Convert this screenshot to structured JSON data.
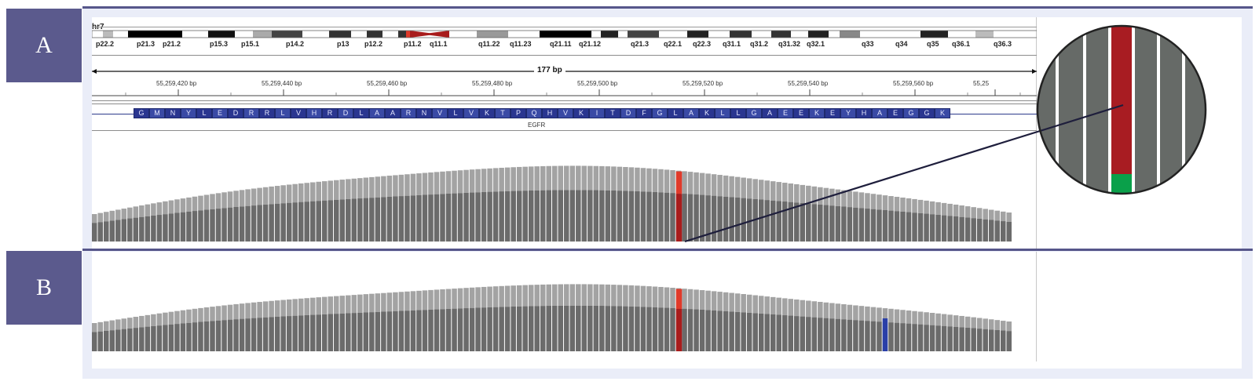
{
  "panels": {
    "a_label": "A",
    "b_label": "B"
  },
  "igv": {
    "chromosome": "hr7",
    "span": "177 bp",
    "gene": "EGFR",
    "bands": [
      "p22.2",
      "p21.3",
      "p21.2",
      "p15.3",
      "p15.1",
      "p14.2",
      "p13",
      "p12.2",
      "p11.2",
      "q11.1",
      "q11.22",
      "q11.23",
      "q21.11",
      "q21.12",
      "q21.3",
      "q22.1",
      "q22.3",
      "q31.1",
      "q31.2",
      "q31.32",
      "q32.1",
      "q33",
      "q34",
      "q35",
      "q36.1",
      "q36.3"
    ],
    "ruler_ticks": [
      "55,259,420 bp",
      "55,259,440 bp",
      "55,259,460 bp",
      "55,259,480 bp",
      "55,259,500 bp",
      "55,259,520 bp",
      "55,259,540 bp",
      "55,259,560 bp",
      "55,25"
    ],
    "amino_acids": [
      "G",
      "M",
      "N",
      "Y",
      "L",
      "E",
      "D",
      "R",
      "R",
      "L",
      "V",
      "H",
      "R",
      "D",
      "L",
      "A",
      "A",
      "R",
      "N",
      "V",
      "L",
      "V",
      "K",
      "T",
      "P",
      "Q",
      "H",
      "V",
      "K",
      "I",
      "T",
      "D",
      "F",
      "G",
      "L",
      "A",
      "K",
      "L",
      "L",
      "G",
      "A",
      "E",
      "E",
      "K",
      "E",
      "Y",
      "H",
      "A",
      "E",
      "G",
      "G",
      "K"
    ]
  },
  "colors": {
    "label_bg": "#5b5a8d",
    "frame": "#eaedf8",
    "coverage_light": "#a3a3a3",
    "coverage_dark": "#6b6b6b",
    "variant_red": "#e03a2a",
    "variant_dark_red": "#a81c1c",
    "variant_green": "#0aa04a",
    "variant_blue": "#2a3fa8",
    "gene_blue": "#1f2a6e"
  }
}
